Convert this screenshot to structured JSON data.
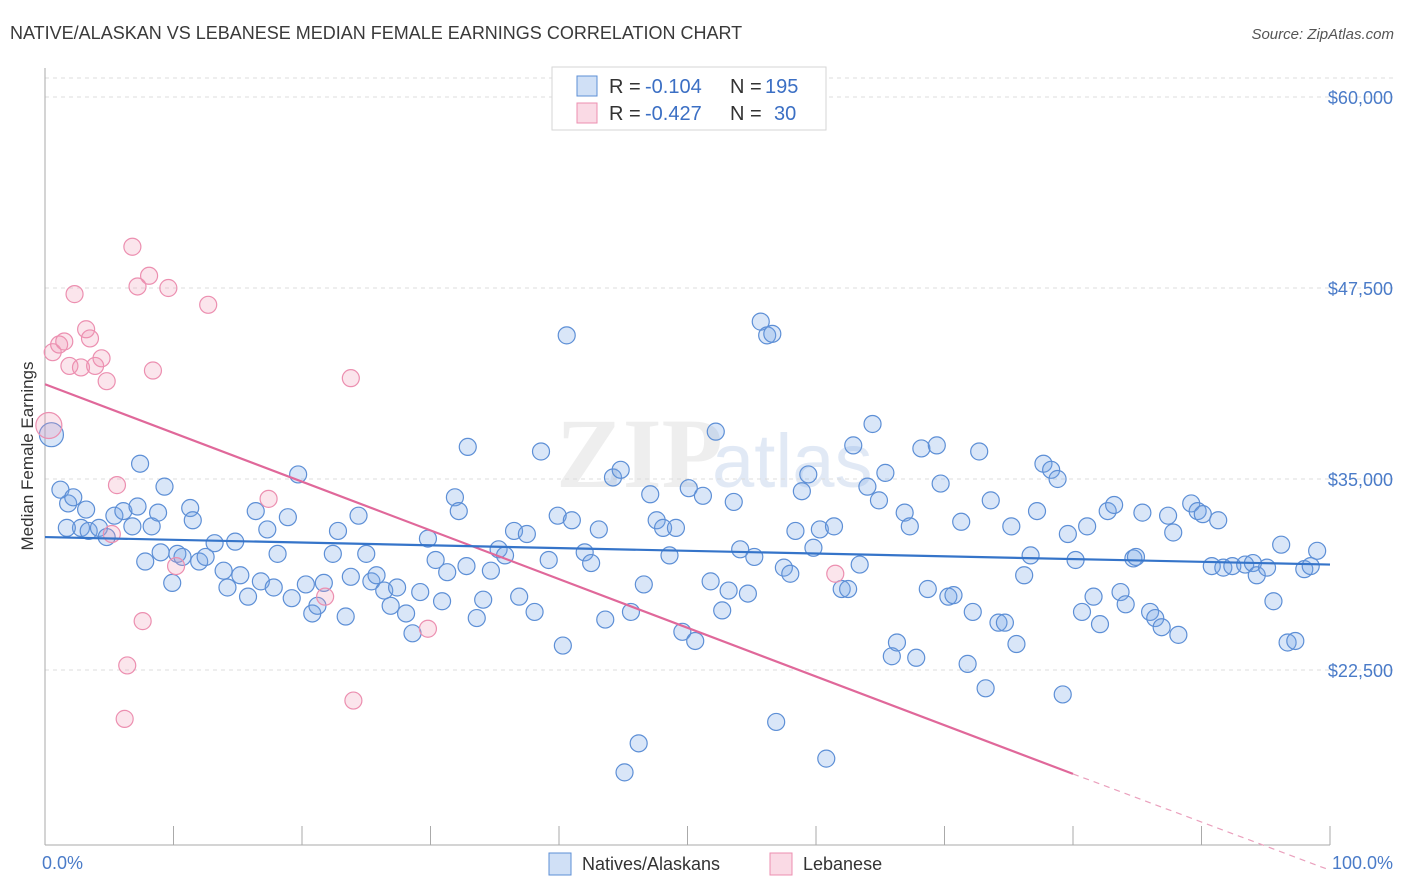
{
  "chart_data": {
    "type": "scatter",
    "title": "NATIVE/ALASKAN VS LEBANESE MEDIAN FEMALE EARNINGS CORRELATION CHART",
    "source": "Source: ZipAtlas.com",
    "watermark": {
      "zip": "ZIP",
      "atlas": "atlas"
    },
    "xlabel": "",
    "ylabel": "Median Female Earnings",
    "xlim": [
      0,
      100
    ],
    "ylim": [
      12000,
      61500
    ],
    "x_tick_labels": [
      "0.0%",
      "100.0%"
    ],
    "y_ticks": [
      {
        "value": 22500,
        "label": "$22,500"
      },
      {
        "value": 35000,
        "label": "$35,000"
      },
      {
        "value": 47500,
        "label": "$47,500"
      },
      {
        "value": 60000,
        "label": "$60,000"
      }
    ],
    "legend": [
      {
        "r_label": "R =",
        "r": "-0.104",
        "n_label": "N =",
        "n": "195",
        "color": "#7aa6e6"
      },
      {
        "r_label": "R =",
        "r": "-0.427",
        "n_label": "N =",
        "n": "30",
        "color": "#f0a0bc"
      }
    ],
    "series": [
      {
        "name": "Natives/Alaskans",
        "color": "#5d8fd6",
        "trend": {
          "x": [
            0,
            100
          ],
          "y": [
            31200,
            29400
          ]
        },
        "points": [
          [
            0.5,
            37900
          ],
          [
            1.2,
            34300
          ],
          [
            1.8,
            33400
          ],
          [
            2.2,
            33800
          ],
          [
            2.8,
            31800
          ],
          [
            3.4,
            31600
          ],
          [
            4.2,
            31800
          ],
          [
            4.8,
            31200
          ],
          [
            5.4,
            32600
          ],
          [
            6.1,
            32900
          ],
          [
            6.8,
            31900
          ],
          [
            7.2,
            33200
          ],
          [
            7.4,
            36000
          ],
          [
            7.8,
            29600
          ],
          [
            8.3,
            31900
          ],
          [
            8.8,
            32800
          ],
          [
            9.3,
            34500
          ],
          [
            9.9,
            28200
          ],
          [
            10.3,
            30100
          ],
          [
            10.7,
            29900
          ],
          [
            11.3,
            33100
          ],
          [
            11.5,
            32300
          ],
          [
            12.0,
            29600
          ],
          [
            12.5,
            29900
          ],
          [
            13.2,
            30800
          ],
          [
            13.9,
            29000
          ],
          [
            14.2,
            27900
          ],
          [
            14.8,
            30900
          ],
          [
            15.2,
            28700
          ],
          [
            15.8,
            27300
          ],
          [
            16.4,
            32900
          ],
          [
            16.8,
            28300
          ],
          [
            17.3,
            31700
          ],
          [
            17.8,
            27900
          ],
          [
            18.1,
            30100
          ],
          [
            18.9,
            32500
          ],
          [
            19.2,
            27200
          ],
          [
            19.7,
            35300
          ],
          [
            20.3,
            28100
          ],
          [
            20.8,
            26200
          ],
          [
            21.2,
            26700
          ],
          [
            21.7,
            28200
          ],
          [
            22.4,
            30100
          ],
          [
            22.8,
            31600
          ],
          [
            23.4,
            26000
          ],
          [
            23.8,
            28600
          ],
          [
            24.4,
            32600
          ],
          [
            25.0,
            30100
          ],
          [
            25.4,
            28300
          ],
          [
            25.8,
            28700
          ],
          [
            26.4,
            27700
          ],
          [
            26.9,
            26700
          ],
          [
            27.4,
            27900
          ],
          [
            28.1,
            26200
          ],
          [
            28.6,
            24900
          ],
          [
            29.2,
            27600
          ],
          [
            29.8,
            31100
          ],
          [
            30.4,
            29700
          ],
          [
            30.9,
            27000
          ],
          [
            31.3,
            28900
          ],
          [
            31.9,
            33800
          ],
          [
            32.2,
            32900
          ],
          [
            32.8,
            29300
          ],
          [
            32.9,
            37100
          ],
          [
            33.6,
            25900
          ],
          [
            34.1,
            27100
          ],
          [
            34.7,
            29000
          ],
          [
            35.3,
            30400
          ],
          [
            35.8,
            30000
          ],
          [
            36.5,
            31600
          ],
          [
            36.9,
            27300
          ],
          [
            37.5,
            31400
          ],
          [
            38.1,
            26300
          ],
          [
            38.6,
            36800
          ],
          [
            39.2,
            29700
          ],
          [
            39.9,
            32600
          ],
          [
            40.3,
            24100
          ],
          [
            40.6,
            44400
          ],
          [
            41.0,
            32300
          ],
          [
            42.0,
            30200
          ],
          [
            42.5,
            29500
          ],
          [
            43.1,
            31700
          ],
          [
            43.6,
            25800
          ],
          [
            44.2,
            35100
          ],
          [
            44.8,
            35600
          ],
          [
            45.1,
            15800
          ],
          [
            45.6,
            26300
          ],
          [
            46.2,
            17700
          ],
          [
            46.6,
            28100
          ],
          [
            47.1,
            34000
          ],
          [
            47.6,
            32300
          ],
          [
            48.1,
            31800
          ],
          [
            48.6,
            30000
          ],
          [
            49.1,
            31800
          ],
          [
            49.6,
            25000
          ],
          [
            50.1,
            34400
          ],
          [
            50.6,
            24400
          ],
          [
            51.2,
            33900
          ],
          [
            51.8,
            28300
          ],
          [
            52.2,
            38100
          ],
          [
            52.7,
            26400
          ],
          [
            53.2,
            27700
          ],
          [
            53.6,
            33500
          ],
          [
            54.1,
            30400
          ],
          [
            54.7,
            27500
          ],
          [
            55.2,
            29900
          ],
          [
            55.7,
            45300
          ],
          [
            56.2,
            44400
          ],
          [
            56.6,
            44500
          ],
          [
            56.9,
            19100
          ],
          [
            57.5,
            29200
          ],
          [
            58.0,
            28800
          ],
          [
            58.4,
            31600
          ],
          [
            58.9,
            34200
          ],
          [
            59.4,
            35300
          ],
          [
            59.8,
            30500
          ],
          [
            60.3,
            31700
          ],
          [
            60.8,
            16700
          ],
          [
            61.4,
            31900
          ],
          [
            62.0,
            27800
          ],
          [
            62.5,
            27800
          ],
          [
            62.9,
            37200
          ],
          [
            63.4,
            29400
          ],
          [
            64.0,
            34500
          ],
          [
            64.4,
            38600
          ],
          [
            64.9,
            33600
          ],
          [
            65.4,
            35400
          ],
          [
            65.9,
            23400
          ],
          [
            66.3,
            24300
          ],
          [
            66.9,
            32800
          ],
          [
            67.3,
            31900
          ],
          [
            67.8,
            23300
          ],
          [
            68.2,
            37000
          ],
          [
            68.7,
            27800
          ],
          [
            69.4,
            37200
          ],
          [
            69.7,
            34700
          ],
          [
            70.3,
            27300
          ],
          [
            70.7,
            27400
          ],
          [
            71.3,
            32200
          ],
          [
            71.8,
            22900
          ],
          [
            72.2,
            26300
          ],
          [
            72.7,
            36800
          ],
          [
            73.2,
            21300
          ],
          [
            73.6,
            33600
          ],
          [
            74.2,
            25600
          ],
          [
            74.7,
            25600
          ],
          [
            75.2,
            31900
          ],
          [
            75.6,
            24200
          ],
          [
            76.2,
            28700
          ],
          [
            76.7,
            30000
          ],
          [
            77.2,
            32900
          ],
          [
            77.7,
            36000
          ],
          [
            78.3,
            35600
          ],
          [
            78.8,
            35000
          ],
          [
            79.2,
            20900
          ],
          [
            79.6,
            31400
          ],
          [
            80.2,
            29700
          ],
          [
            80.7,
            26300
          ],
          [
            81.1,
            31900
          ],
          [
            81.6,
            27300
          ],
          [
            82.1,
            25500
          ],
          [
            82.7,
            32900
          ],
          [
            83.2,
            33300
          ],
          [
            83.7,
            27600
          ],
          [
            84.1,
            26800
          ],
          [
            84.7,
            29800
          ],
          [
            84.9,
            29900
          ],
          [
            85.4,
            32800
          ],
          [
            86.0,
            26300
          ],
          [
            86.4,
            25900
          ],
          [
            86.9,
            25300
          ],
          [
            87.4,
            32600
          ],
          [
            87.8,
            31500
          ],
          [
            88.2,
            24800
          ],
          [
            89.2,
            33400
          ],
          [
            89.7,
            32900
          ],
          [
            90.1,
            32700
          ],
          [
            90.8,
            29300
          ],
          [
            91.3,
            32300
          ],
          [
            91.7,
            29200
          ],
          [
            92.4,
            29300
          ],
          [
            93.4,
            29400
          ],
          [
            94.0,
            29500
          ],
          [
            94.3,
            28700
          ],
          [
            95.1,
            29200
          ],
          [
            95.6,
            27000
          ],
          [
            96.2,
            30700
          ],
          [
            96.7,
            24300
          ],
          [
            97.3,
            24400
          ],
          [
            98.0,
            29100
          ],
          [
            98.5,
            29300
          ],
          [
            99.0,
            30300
          ],
          [
            1.7,
            31800
          ],
          [
            3.2,
            33000
          ],
          [
            9.0,
            30200
          ]
        ]
      },
      {
        "name": "Lebanese",
        "color": "#ec8fb0",
        "trend": {
          "x": [
            0,
            80
          ],
          "y": [
            41200,
            15700
          ]
        },
        "trend_dashed": {
          "x": [
            80,
            100
          ],
          "y": [
            15700,
            9400
          ]
        },
        "points": [
          [
            0.3,
            38500
          ],
          [
            0.6,
            43300
          ],
          [
            1.1,
            43800
          ],
          [
            1.5,
            44000
          ],
          [
            1.9,
            42400
          ],
          [
            2.3,
            47100
          ],
          [
            2.8,
            42300
          ],
          [
            3.2,
            44800
          ],
          [
            3.5,
            44200
          ],
          [
            3.9,
            42400
          ],
          [
            4.4,
            42900
          ],
          [
            4.8,
            41400
          ],
          [
            5.2,
            31400
          ],
          [
            5.6,
            34600
          ],
          [
            6.2,
            19300
          ],
          [
            6.4,
            22800
          ],
          [
            6.8,
            50200
          ],
          [
            7.2,
            47600
          ],
          [
            7.6,
            25700
          ],
          [
            8.1,
            48300
          ],
          [
            8.4,
            42100
          ],
          [
            9.6,
            47500
          ],
          [
            10.2,
            29300
          ],
          [
            12.7,
            46400
          ],
          [
            17.4,
            33700
          ],
          [
            21.8,
            27300
          ],
          [
            23.8,
            41600
          ],
          [
            24.0,
            20500
          ],
          [
            29.8,
            25200
          ],
          [
            61.5,
            28800
          ]
        ]
      }
    ]
  }
}
